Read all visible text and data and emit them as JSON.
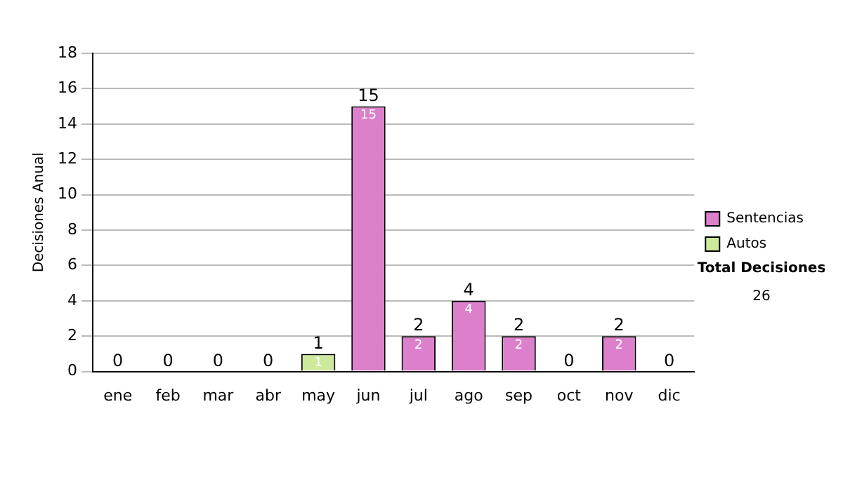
{
  "chart_data": {
    "type": "bar",
    "ylabel": "Decisiones Anual",
    "categories": [
      "ene",
      "feb",
      "mar",
      "abr",
      "may",
      "jun",
      "jul",
      "ago",
      "sep",
      "oct",
      "nov",
      "dic"
    ],
    "series": [
      {
        "name": "Sentencias",
        "color": "#dd80cc",
        "values": [
          0,
          0,
          0,
          0,
          0,
          15,
          2,
          4,
          2,
          0,
          2,
          0
        ],
        "value_labels": [
          null,
          null,
          null,
          null,
          null,
          "15",
          "2",
          "4",
          "2",
          null,
          "2",
          null
        ]
      },
      {
        "name": "Autos",
        "color": "#cce99c",
        "values": [
          0,
          0,
          0,
          0,
          1,
          0,
          0,
          0,
          0,
          0,
          0,
          0
        ],
        "value_labels": [
          null,
          null,
          null,
          null,
          "1",
          null,
          null,
          null,
          null,
          null,
          null,
          null
        ]
      }
    ],
    "stacked": true,
    "totals": [
      "0",
      "0",
      "0",
      "0",
      "1",
      "15",
      "2",
      "4",
      "2",
      "0",
      "2",
      "0"
    ],
    "ylim": [
      0,
      18
    ],
    "yticks": [
      0,
      2,
      4,
      6,
      8,
      10,
      12,
      14,
      16,
      18
    ],
    "grid": "y",
    "legend": "right",
    "annotations": [
      "Total Decisiones",
      "26"
    ]
  }
}
